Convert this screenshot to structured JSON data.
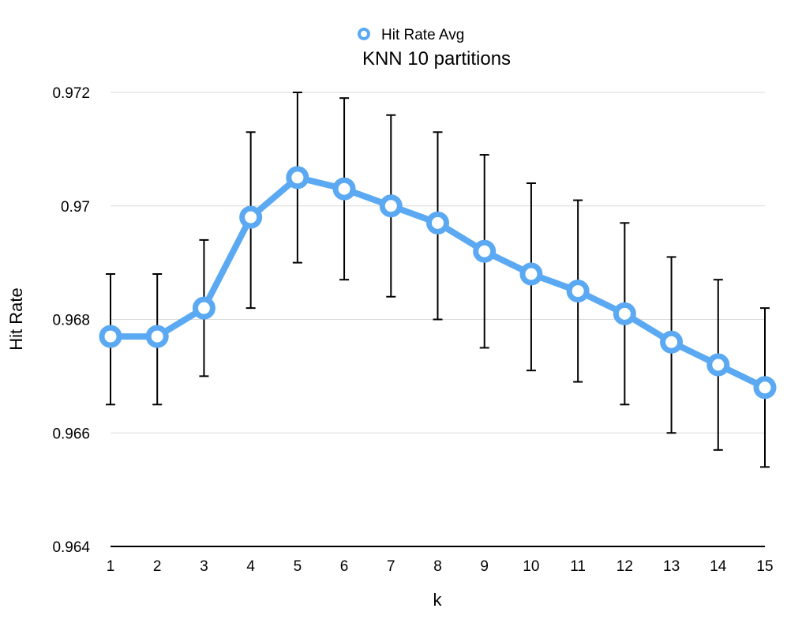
{
  "chart_data": {
    "type": "line",
    "title": "KNN 10 partitions",
    "xlabel": "k",
    "ylabel": "Hit Rate",
    "x": [
      1,
      2,
      3,
      4,
      5,
      6,
      7,
      8,
      9,
      10,
      11,
      12,
      13,
      14,
      15
    ],
    "x_tick_labels": [
      "1",
      "2",
      "3",
      "4",
      "5",
      "6",
      "7",
      "8",
      "9",
      "10",
      "11",
      "12",
      "13",
      "14",
      "15"
    ],
    "ylim": [
      0.964,
      0.972
    ],
    "y_ticks": [
      0.964,
      0.966,
      0.968,
      0.97,
      0.972
    ],
    "y_tick_labels": [
      "0.964",
      "0.966",
      "0.968",
      "0.97",
      "0.972"
    ],
    "grid": true,
    "legend_position": "top-center",
    "series": [
      {
        "name": "Hit Rate Avg",
        "color": "#5aa9f2",
        "values": [
          0.9677,
          0.9677,
          0.9682,
          0.9698,
          0.9705,
          0.9703,
          0.97,
          0.9697,
          0.9692,
          0.9688,
          0.9685,
          0.9681,
          0.9676,
          0.9672,
          0.9668
        ],
        "error_upper": [
          0.9688,
          0.9688,
          0.9694,
          0.9713,
          0.972,
          0.9719,
          0.9716,
          0.9713,
          0.9709,
          0.9704,
          0.9701,
          0.9697,
          0.9691,
          0.9687,
          0.9682
        ],
        "error_lower": [
          0.9665,
          0.9665,
          0.967,
          0.9682,
          0.969,
          0.9687,
          0.9684,
          0.968,
          0.9675,
          0.9671,
          0.9669,
          0.9665,
          0.966,
          0.9657,
          0.9654
        ]
      }
    ]
  }
}
